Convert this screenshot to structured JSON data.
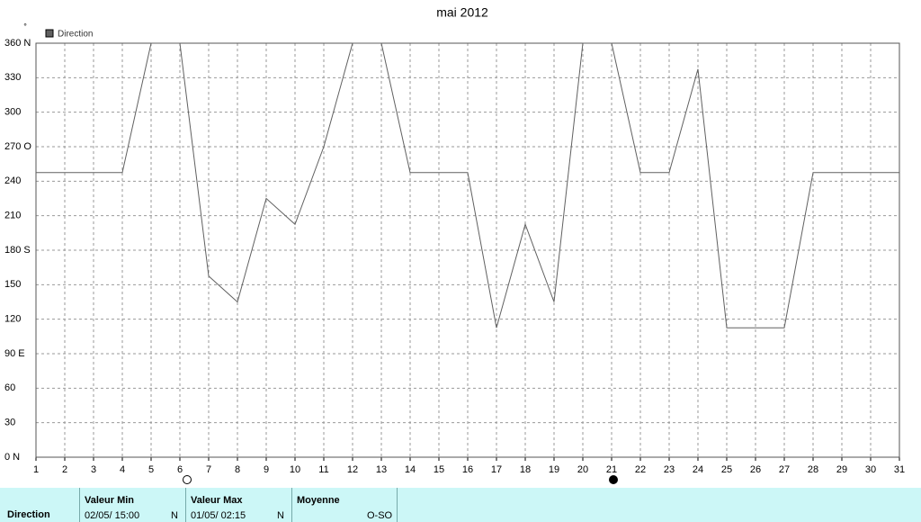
{
  "chart_data": {
    "type": "line",
    "title": "mai 2012",
    "y_unit": "°",
    "x": [
      1,
      2,
      3,
      4,
      5,
      6,
      7,
      8,
      9,
      10,
      11,
      12,
      13,
      14,
      15,
      16,
      17,
      18,
      19,
      20,
      21,
      22,
      23,
      24,
      25,
      26,
      27,
      28,
      29,
      30,
      31
    ],
    "series": [
      {
        "name": "Direction",
        "color": "#606060",
        "values": [
          247.5,
          247.5,
          247.5,
          247.5,
          360,
          360,
          157.5,
          135,
          225,
          202.5,
          270,
          360,
          360,
          247.5,
          247.5,
          247.5,
          112.5,
          202.5,
          135,
          360,
          360,
          247.5,
          247.5,
          337.5,
          112.5,
          112.5,
          112.5,
          247.5,
          247.5,
          247.5,
          247.5
        ]
      }
    ],
    "xlim": [
      1,
      31
    ],
    "xticks": [
      1,
      2,
      3,
      4,
      5,
      6,
      7,
      8,
      9,
      10,
      11,
      12,
      13,
      14,
      15,
      16,
      17,
      18,
      19,
      20,
      21,
      22,
      23,
      24,
      25,
      26,
      27,
      28,
      29,
      30,
      31
    ],
    "ylim": [
      0,
      360
    ],
    "yticks": [
      {
        "value": 0,
        "label": "0   N"
      },
      30,
      60,
      {
        "value": 90,
        "label": "90  E"
      },
      120,
      150,
      {
        "value": 180,
        "label": "180 S"
      },
      210,
      240,
      {
        "value": 270,
        "label": "270 O"
      },
      300,
      330,
      {
        "value": 360,
        "label": "360 N"
      }
    ],
    "grid": true,
    "legend": "top-left"
  },
  "stats": {
    "row_label": "Direction",
    "min": {
      "header": "Valeur Min",
      "date": "02/05/  15:00",
      "dir": "N"
    },
    "max": {
      "header": "Valeur Max",
      "date": "01/05/  02:15",
      "dir": "N"
    },
    "mean": {
      "header": "Moyenne",
      "value": "O-SO"
    }
  }
}
